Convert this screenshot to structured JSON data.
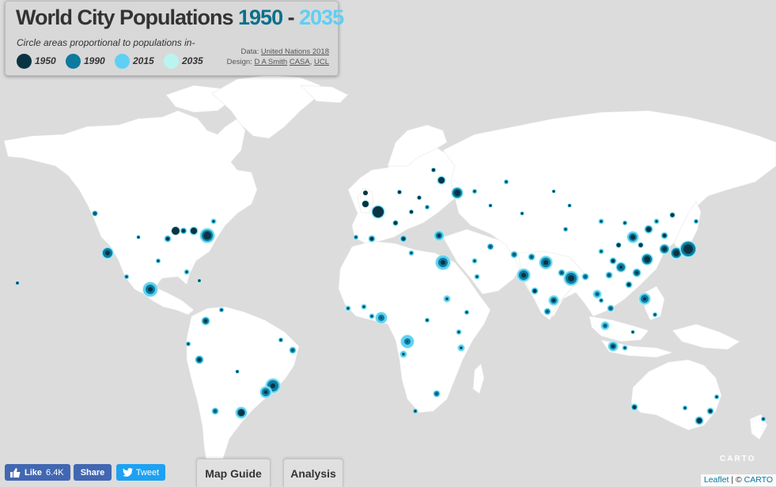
{
  "header": {
    "title_main": "World City Populations",
    "year_start": "1950",
    "dash": "-",
    "year_end": "2035",
    "subtitle": "Circle areas proportional to populations in-"
  },
  "legend": {
    "items": [
      {
        "label": "1950",
        "color": "#0b3443"
      },
      {
        "label": "1990",
        "color": "#0c7a9e"
      },
      {
        "label": "2015",
        "color": "#5fd0f3"
      },
      {
        "label": "2035",
        "color": "#b9f5ee"
      }
    ]
  },
  "credits": {
    "data_label": "Data:",
    "data_link": "United Nations 2018",
    "design_label": "Design:",
    "designer": "D A Smith",
    "org1": "CASA",
    "sep": ",",
    "org2": "UCL"
  },
  "social": {
    "like_label": "Like",
    "like_count": "6.4K",
    "share_label": "Share",
    "tweet_label": "Tweet"
  },
  "tabs": {
    "map_guide": "Map Guide",
    "analysis": "Analysis"
  },
  "map": {
    "logo": "CARTO",
    "attribution_leaflet": "Leaflet",
    "attribution_sep": " | © ",
    "attribution_carto": "CARTO",
    "land_color": "#ffffff",
    "water_color": "#dcdcdc"
  }
}
